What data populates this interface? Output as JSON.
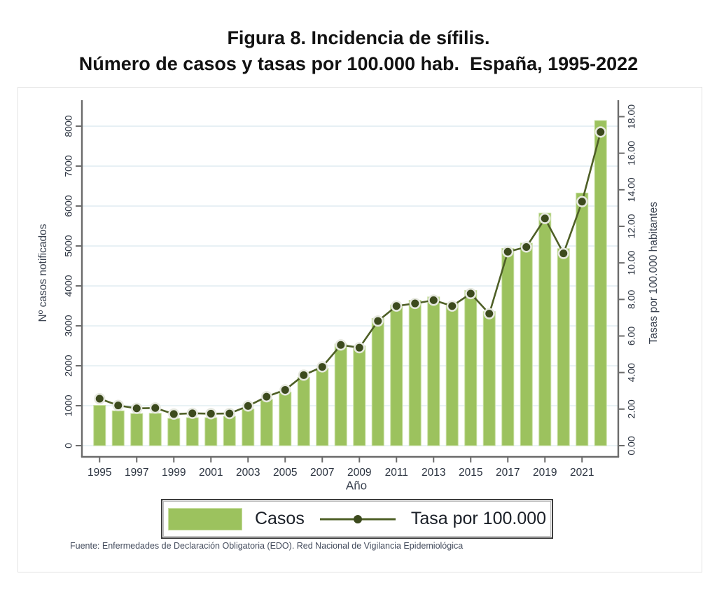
{
  "title": {
    "line1": "Figura 8. Incidencia de sífilis.",
    "line2": "Número de casos y tasas por 100.000 hab.  España, 1995-2022"
  },
  "legend": {
    "casos_label": "Casos",
    "tasa_label": "Tasa por 100.000"
  },
  "source": "Fuente: Enfermedades de Declaración Obligatoria (EDO). Red Nacional de Vigilancia Epidemiológica",
  "colors": {
    "bar_fill": "#9cc25e",
    "bar_edge": "#c8dfa2",
    "line": "#4e5f26",
    "marker_fill": "#3c4a1d",
    "marker_ring": "#e6e8df",
    "grid": "#e2edf2",
    "axis_line": "#6b6b6b",
    "tick_text": "#2a323f",
    "axis_title_text": "#3a4250"
  },
  "chart_data": {
    "type": "bar",
    "title": "Figura 8. Incidencia de sífilis. Número de casos y tasas por 100.000 hab. España, 1995-2022",
    "xlabel": "Año",
    "ylabel_left": "Nº casos notificados",
    "ylabel_right": "Tasas por 100.000 habitantes",
    "ylim_left": [
      0,
      8650
    ],
    "ylim_right": [
      0,
      18.9
    ],
    "grid": "horizontal-light",
    "legend_position": "bottom",
    "categories": [
      "1995",
      "1996",
      "1997",
      "1998",
      "1999",
      "2000",
      "2001",
      "2002",
      "2003",
      "2004",
      "2005",
      "2006",
      "2007",
      "2008",
      "2009",
      "2010",
      "2011",
      "2012",
      "2013",
      "2014",
      "2015",
      "2016",
      "2017",
      "2018",
      "2019",
      "2020",
      "2021",
      "2022"
    ],
    "x_tick_labels": [
      "1995",
      "1997",
      "1999",
      "2001",
      "2003",
      "2005",
      "2007",
      "2009",
      "2011",
      "2013",
      "2015",
      "2017",
      "2019",
      "2021"
    ],
    "left_axis_ticks": [
      "0",
      "1000",
      "2000",
      "3000",
      "4000",
      "5000",
      "6000",
      "7000",
      "8000"
    ],
    "right_axis_ticks": [
      "0.00",
      "2.00",
      "4.00",
      "6.00",
      "8.00",
      "10.00",
      "12.00",
      "14.00",
      "16.00",
      "18.00"
    ],
    "series": [
      {
        "name": "Casos",
        "type": "bar",
        "axis": "left",
        "values": [
          1010,
          872,
          803,
          810,
          682,
          700,
          700,
          734,
          917,
          1156,
          1344,
          1711,
          1936,
          2545,
          2496,
          3187,
          3522,
          3641,
          3723,
          3568,
          3886,
          3357,
          4941,
          5070,
          5822,
          4933,
          6326,
          8141
        ]
      },
      {
        "name": "Tasa por 100.000",
        "type": "line",
        "axis": "right",
        "values": [
          2.57,
          2.2,
          2.04,
          2.06,
          1.73,
          1.77,
          1.75,
          1.76,
          2.17,
          2.68,
          3.05,
          3.86,
          4.31,
          5.51,
          5.36,
          6.82,
          7.64,
          7.78,
          7.96,
          7.64,
          8.32,
          7.22,
          10.61,
          10.87,
          12.43,
          10.52,
          13.35,
          17.16
        ]
      }
    ]
  }
}
